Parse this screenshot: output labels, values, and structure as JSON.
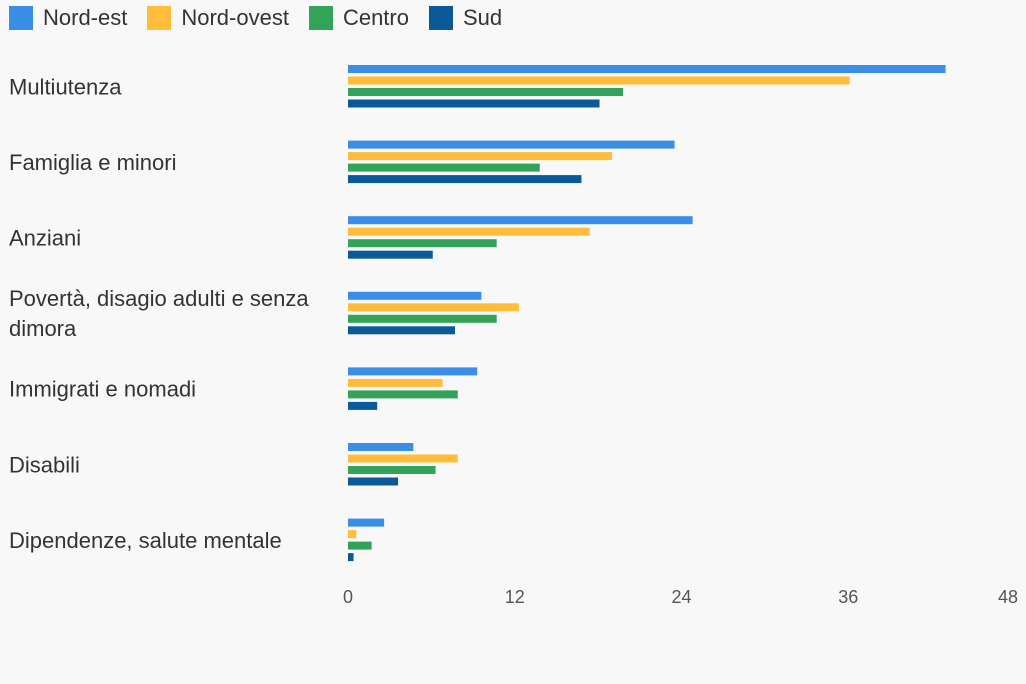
{
  "chart_data": {
    "type": "bar",
    "orientation": "horizontal",
    "categories": [
      "Multiutenza",
      "Famiglia e minori",
      "Anziani",
      "Povertà, disagio adulti e senza dimora",
      "Immigrati e nomadi",
      "Disabili",
      "Dipendenze, salute mentale"
    ],
    "series": [
      {
        "name": "Nord-est",
        "color": "#3a8ee6",
        "values": [
          43.0,
          23.5,
          24.8,
          9.6,
          9.3,
          4.7,
          2.6
        ]
      },
      {
        "name": "Nord-ovest",
        "color": "#ffbd3b",
        "values": [
          36.1,
          19.0,
          17.4,
          12.3,
          6.8,
          7.9,
          0.6
        ]
      },
      {
        "name": "Centro",
        "color": "#33a35a",
        "values": [
          19.8,
          13.8,
          10.7,
          10.7,
          7.9,
          6.3,
          1.7
        ]
      },
      {
        "name": "Sud",
        "color": "#0b5a97",
        "values": [
          18.1,
          16.8,
          6.1,
          7.7,
          2.1,
          3.6,
          0.4
        ]
      }
    ],
    "xticks": [
      "0",
      "12",
      "24",
      "36",
      "48"
    ],
    "xlim": [
      0,
      48
    ],
    "grid": false,
    "legend_position": "top-left"
  }
}
